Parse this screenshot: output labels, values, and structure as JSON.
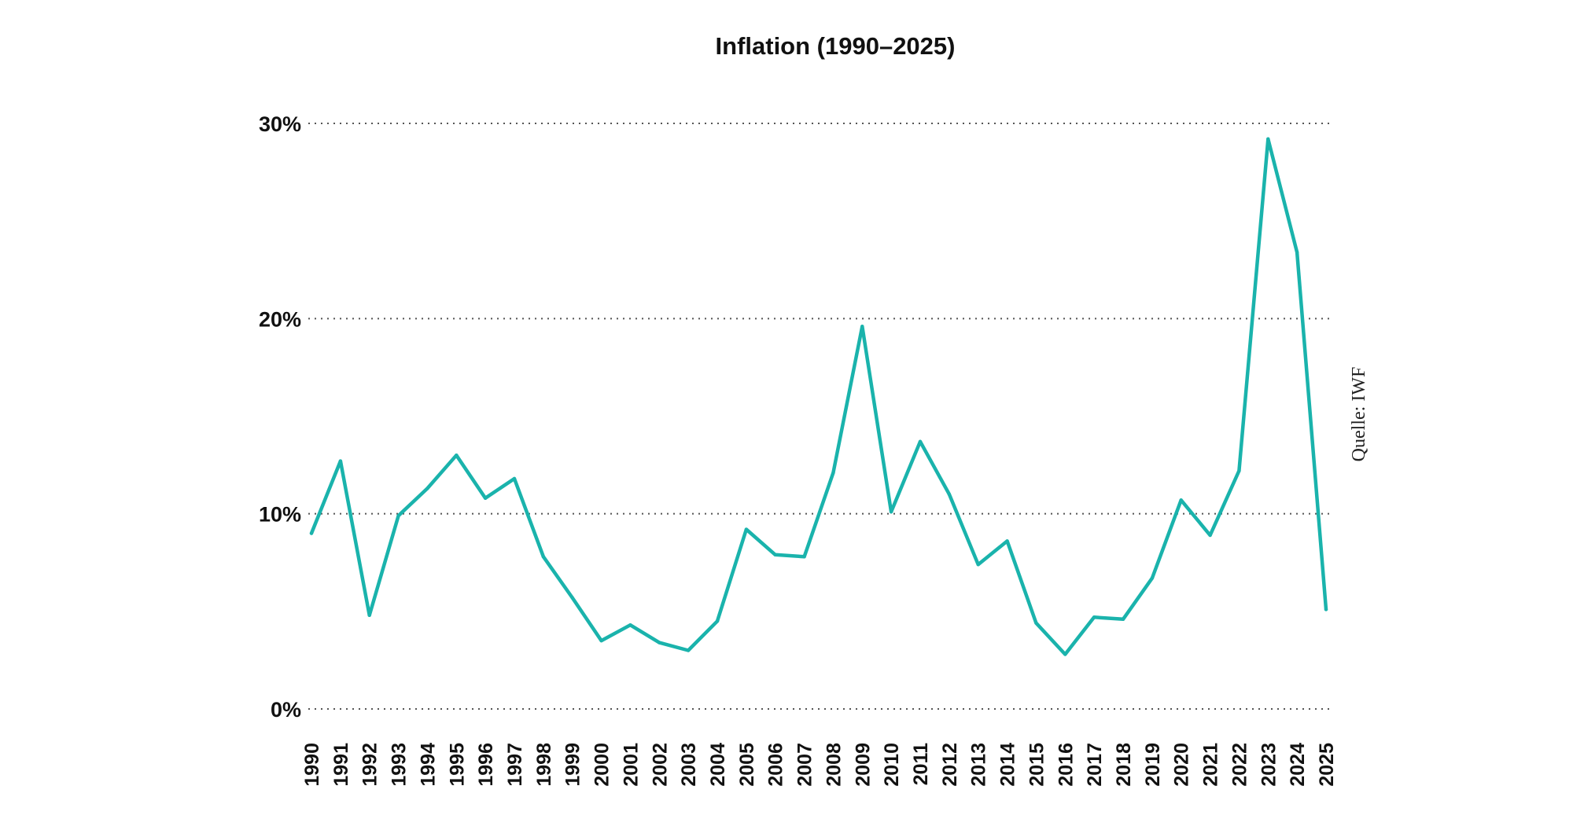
{
  "chart_data": {
    "type": "line",
    "title": "Inflation (1990–2025)",
    "source": "Quelle: IWF",
    "xlabel": "",
    "ylabel": "",
    "ylim": [
      0,
      30
    ],
    "yticks": [
      {
        "value": 0,
        "label": "0%"
      },
      {
        "value": 10,
        "label": "10%"
      },
      {
        "value": 20,
        "label": "20%"
      },
      {
        "value": 30,
        "label": "30%"
      }
    ],
    "grid": true,
    "line_color": "#1ab3ac",
    "x": [
      "1990",
      "1991",
      "1992",
      "1993",
      "1994",
      "1995",
      "1996",
      "1997",
      "1998",
      "1999",
      "2000",
      "2001",
      "2002",
      "2003",
      "2004",
      "2005",
      "2006",
      "2007",
      "2008",
      "2009",
      "2010",
      "2011",
      "2012",
      "2013",
      "2014",
      "2015",
      "2016",
      "2017",
      "2018",
      "2019",
      "2020",
      "2021",
      "2022",
      "2023",
      "2024",
      "2025"
    ],
    "series": [
      {
        "values": [
          9.0,
          12.7,
          4.8,
          9.9,
          11.3,
          13.0,
          10.8,
          11.8,
          7.8,
          5.7,
          3.5,
          4.3,
          3.4,
          3.0,
          4.5,
          9.2,
          7.9,
          7.8,
          12.1,
          19.6,
          10.1,
          13.7,
          11.0,
          7.4,
          8.6,
          4.4,
          2.8,
          4.7,
          4.6,
          6.7,
          10.7,
          8.9,
          12.2,
          29.2,
          23.4,
          5.1
        ]
      }
    ]
  }
}
